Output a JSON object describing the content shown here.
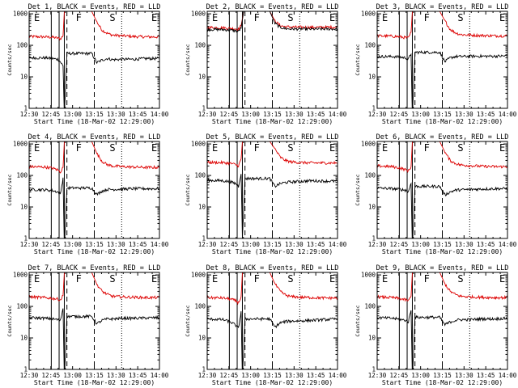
{
  "figure": {
    "x_ticks": [
      "12:30",
      "12:45",
      "13:00",
      "13:15",
      "13:30",
      "13:45",
      "14:00"
    ],
    "y_ticks": [
      "1",
      "10",
      "100",
      "1000"
    ],
    "ylabel": "Counts/sec",
    "xlabel": "Start Time (18-Mar-02 12:29:00)",
    "interval_markers": [
      "E",
      "F",
      "S",
      "E"
    ],
    "colors": {
      "events": "#000000",
      "lld": "#dd0000",
      "axis": "#000000",
      "background": "#ffffff"
    }
  },
  "chart_data": [
    {
      "type": "line",
      "title": "Det 1, BLACK = Events, RED = LLD",
      "x_range_min": [
        0,
        100
      ],
      "ylim": [
        1,
        1200
      ],
      "y_scale": "log",
      "series": [
        {
          "color": "#000000",
          "pre": 40,
          "post": 38,
          "x": [
            0,
            12,
            18,
            22,
            24,
            26,
            27,
            29,
            48,
            52,
            56,
            60,
            64,
            72,
            80,
            90,
            100
          ],
          "values": [
            40,
            40,
            38,
            36,
            30,
            22,
            0.6,
            55,
            55,
            28,
            34,
            38,
            35,
            36,
            36,
            38,
            38
          ]
        },
        {
          "color": "#dd0000",
          "pre": 190,
          "post": 185,
          "x": [
            0,
            12,
            18,
            22,
            24,
            26,
            27,
            29,
            48,
            52,
            56,
            60,
            64,
            72,
            80,
            90,
            100
          ],
          "values": [
            190,
            185,
            180,
            170,
            160,
            200,
            1200,
            1200,
            1200,
            550,
            300,
            240,
            210,
            200,
            190,
            185,
            185
          ]
        }
      ],
      "vlines_solid": [
        17,
        23,
        27
      ],
      "vlines_dashed": [
        29,
        50
      ],
      "vlines_dotted": [
        71
      ]
    },
    {
      "type": "line",
      "title": "Det 2, BLACK = Events, RED = LLD",
      "x_range_min": [
        0,
        100
      ],
      "ylim": [
        1,
        1200
      ],
      "y_scale": "log",
      "series": [
        {
          "color": "#000000",
          "pre": 330,
          "post": 330,
          "x": [
            0,
            12,
            18,
            22,
            24,
            26,
            28,
            30,
            48,
            52,
            56,
            60,
            64,
            72,
            80,
            90,
            100
          ],
          "values": [
            320,
            315,
            300,
            290,
            280,
            350,
            1200,
            1200,
            1200,
            500,
            370,
            340,
            330,
            330,
            325,
            330,
            330
          ]
        },
        {
          "color": "#dd0000",
          "pre": 380,
          "post": 380,
          "x": [
            0,
            12,
            18,
            22,
            24,
            26,
            28,
            30,
            48,
            52,
            56,
            60,
            64,
            72,
            80,
            90,
            100
          ],
          "values": [
            370,
            360,
            345,
            335,
            325,
            420,
            1200,
            1200,
            1200,
            600,
            420,
            390,
            380,
            375,
            370,
            375,
            380
          ]
        }
      ],
      "vlines_solid": [
        17,
        23,
        27
      ],
      "vlines_dashed": [
        29,
        50
      ],
      "vlines_dotted": [
        71
      ]
    },
    {
      "type": "line",
      "title": "Det 3, BLACK = Events, RED = LLD",
      "x_range_min": [
        0,
        100
      ],
      "ylim": [
        1,
        1200
      ],
      "y_scale": "log",
      "series": [
        {
          "color": "#000000",
          "pre": 45,
          "post": 45,
          "x": [
            0,
            12,
            18,
            22,
            24,
            26,
            27,
            29,
            48,
            52,
            56,
            60,
            64,
            72,
            80,
            90,
            100
          ],
          "values": [
            44,
            44,
            42,
            40,
            36,
            55,
            0.5,
            60,
            60,
            30,
            40,
            44,
            44,
            45,
            45,
            45,
            46
          ]
        },
        {
          "color": "#dd0000",
          "pre": 200,
          "post": 200,
          "x": [
            0,
            12,
            18,
            22,
            24,
            26,
            27,
            29,
            48,
            52,
            56,
            60,
            64,
            72,
            80,
            90,
            100
          ],
          "values": [
            200,
            195,
            185,
            175,
            170,
            260,
            1200,
            1200,
            1200,
            600,
            320,
            250,
            220,
            210,
            205,
            200,
            200
          ]
        }
      ],
      "vlines_solid": [
        17,
        23,
        27
      ],
      "vlines_dashed": [
        29,
        50
      ],
      "vlines_dotted": [
        71
      ]
    },
    {
      "type": "line",
      "title": "Det 4, BLACK = Events, RED = LLD",
      "x_range_min": [
        0,
        100
      ],
      "ylim": [
        1,
        1200
      ],
      "y_scale": "log",
      "series": [
        {
          "color": "#000000",
          "pre": 38,
          "post": 38,
          "x": [
            0,
            12,
            18,
            22,
            24,
            26,
            27,
            29,
            48,
            52,
            56,
            60,
            64,
            72,
            80,
            90,
            100
          ],
          "values": [
            36,
            35,
            33,
            30,
            25,
            85,
            0.5,
            40,
            40,
            25,
            32,
            36,
            36,
            37,
            38,
            38,
            38
          ]
        },
        {
          "color": "#dd0000",
          "pre": 190,
          "post": 180,
          "x": [
            0,
            12,
            18,
            22,
            24,
            26,
            27,
            29,
            48,
            52,
            56,
            60,
            64,
            72,
            80,
            90,
            100
          ],
          "values": [
            190,
            185,
            170,
            150,
            130,
            180,
            1200,
            1200,
            1200,
            500,
            280,
            220,
            200,
            190,
            185,
            180,
            180
          ]
        }
      ],
      "vlines_solid": [
        17,
        23,
        27
      ],
      "vlines_dashed": [
        29,
        50
      ],
      "vlines_dotted": [
        71
      ]
    },
    {
      "type": "line",
      "title": "Det 5, BLACK = Events, RED = LLD",
      "x_range_min": [
        0,
        100
      ],
      "ylim": [
        1,
        1200
      ],
      "y_scale": "log",
      "series": [
        {
          "color": "#000000",
          "pre": 70,
          "post": 65,
          "x": [
            0,
            12,
            18,
            22,
            24,
            26,
            27,
            29,
            48,
            52,
            56,
            60,
            64,
            72,
            80,
            90,
            100
          ],
          "values": [
            70,
            68,
            62,
            55,
            45,
            120,
            1,
            80,
            80,
            45,
            55,
            60,
            62,
            65,
            68,
            66,
            66
          ]
        },
        {
          "color": "#dd0000",
          "pre": 260,
          "post": 250,
          "x": [
            0,
            12,
            18,
            22,
            24,
            26,
            27,
            29,
            48,
            52,
            56,
            60,
            64,
            72,
            80,
            90,
            100
          ],
          "values": [
            260,
            255,
            240,
            220,
            200,
            330,
            1200,
            1200,
            1200,
            700,
            380,
            300,
            270,
            255,
            250,
            250,
            250
          ]
        }
      ],
      "vlines_solid": [
        17,
        23,
        27
      ],
      "vlines_dashed": [
        29,
        50
      ],
      "vlines_dotted": [
        71
      ]
    },
    {
      "type": "line",
      "title": "Det 6, BLACK = Events, RED = LLD",
      "x_range_min": [
        0,
        100
      ],
      "ylim": [
        1,
        1200
      ],
      "y_scale": "log",
      "series": [
        {
          "color": "#000000",
          "pre": 40,
          "post": 38,
          "x": [
            0,
            12,
            18,
            22,
            24,
            26,
            27,
            29,
            48,
            52,
            56,
            60,
            64,
            72,
            80,
            90,
            100
          ],
          "values": [
            40,
            38,
            36,
            34,
            30,
            60,
            0.5,
            45,
            45,
            24,
            30,
            34,
            35,
            36,
            37,
            38,
            38
          ]
        },
        {
          "color": "#dd0000",
          "pre": 200,
          "post": 190,
          "x": [
            0,
            12,
            18,
            22,
            24,
            26,
            27,
            29,
            48,
            52,
            56,
            60,
            64,
            72,
            80,
            90,
            100
          ],
          "values": [
            200,
            190,
            170,
            150,
            140,
            190,
            1200,
            1200,
            1200,
            550,
            300,
            240,
            215,
            205,
            195,
            190,
            190
          ]
        }
      ],
      "vlines_solid": [
        17,
        23,
        27
      ],
      "vlines_dashed": [
        29,
        50
      ],
      "vlines_dotted": [
        71
      ]
    },
    {
      "type": "line",
      "title": "Det 7, BLACK = Events, RED = LLD",
      "x_range_min": [
        0,
        100
      ],
      "ylim": [
        1,
        1200
      ],
      "y_scale": "log",
      "series": [
        {
          "color": "#000000",
          "pre": 45,
          "post": 42,
          "x": [
            0,
            12,
            18,
            22,
            24,
            26,
            27,
            29,
            48,
            52,
            56,
            60,
            64,
            72,
            80,
            90,
            100
          ],
          "values": [
            44,
            42,
            40,
            38,
            35,
            90,
            0.5,
            48,
            48,
            28,
            36,
            40,
            40,
            42,
            42,
            43,
            44
          ]
        },
        {
          "color": "#dd0000",
          "pre": 200,
          "post": 190,
          "x": [
            0,
            12,
            18,
            22,
            24,
            26,
            27,
            29,
            48,
            52,
            56,
            60,
            64,
            72,
            80,
            90,
            100
          ],
          "values": [
            200,
            190,
            180,
            170,
            160,
            220,
            1200,
            1200,
            1200,
            500,
            300,
            240,
            210,
            200,
            195,
            190,
            190
          ]
        }
      ],
      "vlines_solid": [
        17,
        23,
        27
      ],
      "vlines_dashed": [
        29,
        50
      ],
      "vlines_dotted": [
        71
      ]
    },
    {
      "type": "line",
      "title": "Det 8, BLACK = Events, RED = LLD",
      "x_range_min": [
        0,
        100
      ],
      "ylim": [
        1,
        1200
      ],
      "y_scale": "log",
      "series": [
        {
          "color": "#000000",
          "pre": 40,
          "post": 35,
          "x": [
            0,
            12,
            18,
            22,
            24,
            26,
            27,
            29,
            48,
            52,
            56,
            60,
            64,
            72,
            80,
            90,
            100
          ],
          "values": [
            40,
            38,
            32,
            25,
            20,
            70,
            0.5,
            40,
            40,
            22,
            30,
            33,
            34,
            35,
            36,
            38,
            40
          ]
        },
        {
          "color": "#dd0000",
          "pre": 190,
          "post": 185,
          "x": [
            0,
            12,
            18,
            22,
            24,
            26,
            27,
            29,
            48,
            52,
            56,
            60,
            64,
            72,
            80,
            90,
            100
          ],
          "values": [
            190,
            185,
            170,
            150,
            130,
            200,
            1200,
            1200,
            1200,
            520,
            300,
            230,
            205,
            195,
            190,
            185,
            185
          ]
        }
      ],
      "vlines_solid": [
        17,
        23,
        27
      ],
      "vlines_dashed": [
        29,
        50
      ],
      "vlines_dotted": [
        71
      ]
    },
    {
      "type": "line",
      "title": "Det 9, BLACK = Events, RED = LLD",
      "x_range_min": [
        0,
        100
      ],
      "ylim": [
        1,
        1200
      ],
      "y_scale": "log",
      "series": [
        {
          "color": "#000000",
          "pre": 45,
          "post": 40,
          "x": [
            0,
            12,
            18,
            22,
            24,
            26,
            27,
            29,
            48,
            52,
            56,
            60,
            64,
            72,
            80,
            90,
            100
          ],
          "values": [
            44,
            42,
            38,
            36,
            32,
            80,
            0.5,
            45,
            45,
            26,
            32,
            36,
            38,
            38,
            40,
            40,
            42
          ]
        },
        {
          "color": "#dd0000",
          "pre": 200,
          "post": 190,
          "x": [
            0,
            12,
            18,
            22,
            24,
            26,
            27,
            29,
            48,
            52,
            56,
            60,
            64,
            72,
            80,
            90,
            100
          ],
          "values": [
            200,
            190,
            175,
            160,
            150,
            210,
            1200,
            1200,
            1200,
            520,
            300,
            240,
            210,
            200,
            195,
            190,
            190
          ]
        }
      ],
      "vlines_solid": [
        17,
        23,
        27
      ],
      "vlines_dashed": [
        29,
        50
      ],
      "vlines_dotted": [
        71
      ]
    }
  ]
}
